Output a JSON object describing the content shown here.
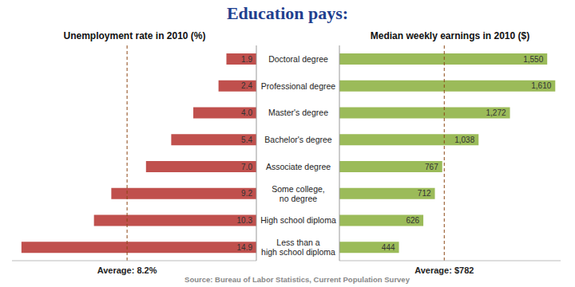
{
  "title": "Education pays:",
  "source": "Source: Bureau of Labor Statistics, Current Population Survey",
  "chart_data": [
    {
      "type": "bar",
      "orientation": "horizontal",
      "title": "Unemployment rate in 2010 (%)",
      "categories": [
        "Doctoral degree",
        "Professional degree",
        "Master's degree",
        "Bachelor's degree",
        "Associate degree",
        "Some college, no degree",
        "High school diploma",
        "Less than a high school diploma"
      ],
      "values": [
        1.9,
        2.4,
        4.0,
        5.4,
        7.0,
        9.2,
        10.3,
        14.9
      ],
      "value_labels": [
        "1.9",
        "2.4",
        "4.0",
        "5.4",
        "7.0",
        "9.2",
        "10.3",
        "14.9"
      ],
      "color": "#c0504d",
      "xlim": [
        0,
        15.5
      ],
      "data_labels": true,
      "tick_labels": false,
      "grid": false,
      "reference_line": {
        "value": 8.2,
        "label": "Average: 8.2%"
      }
    },
    {
      "type": "bar",
      "orientation": "horizontal",
      "title": "Median weekly earnings in 2010 ($)",
      "categories": [
        "Doctoral degree",
        "Professional degree",
        "Master's degree",
        "Bachelor's degree",
        "Associate degree",
        "Some college, no degree",
        "High school diploma",
        "Less than a high school diploma"
      ],
      "values": [
        1550,
        1610,
        1272,
        1038,
        767,
        712,
        626,
        444
      ],
      "value_labels": [
        "1,550",
        "1,610",
        "1,272",
        "1,038",
        "767",
        "712",
        "626",
        "444"
      ],
      "color": "#9bbb59",
      "xlim": [
        0,
        1650
      ],
      "data_labels": true,
      "tick_labels": false,
      "grid": false,
      "reference_line": {
        "value": 782,
        "label": "Average: $782"
      }
    }
  ]
}
